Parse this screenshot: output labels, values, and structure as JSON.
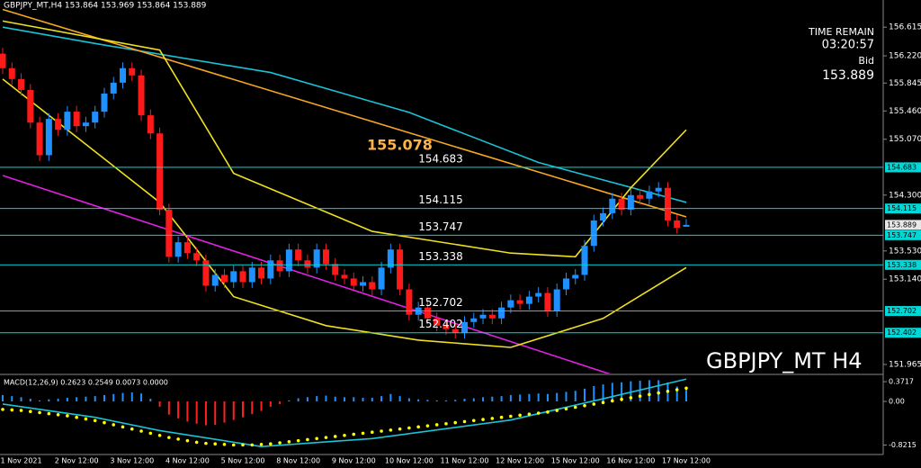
{
  "chart_data": {
    "type": "candlestick",
    "header": "GBPJPY_MT,H4 153.864 153.969 153.864 153.889",
    "categories": [
      null,
      null,
      "1 Nov 2021",
      null,
      null,
      null,
      null,
      null,
      "2 Nov 12:00",
      null,
      null,
      null,
      null,
      null,
      "3 Nov 12:00",
      null,
      null,
      null,
      null,
      null,
      "4 Nov 12:00",
      null,
      null,
      null,
      null,
      null,
      "5 Nov 12:00",
      null,
      null,
      null,
      null,
      null,
      "8 Nov 12:00",
      null,
      null,
      null,
      null,
      null,
      "9 Nov 12:00",
      null,
      null,
      null,
      null,
      null,
      "10 Nov 12:00",
      null,
      null,
      null,
      null,
      null,
      "11 Nov 12:00",
      null,
      null,
      null,
      null,
      null,
      "12 Nov 12:00",
      null,
      null,
      null,
      null,
      null,
      "15 Nov 12:00",
      null,
      null,
      null,
      null,
      null,
      "16 Nov 12:00",
      null,
      null,
      null,
      null,
      null,
      "17 Nov 12:00"
    ],
    "open": [
      156.25,
      156.05,
      155.9,
      155.75,
      155.3,
      154.85,
      155.35,
      155.2,
      155.45,
      155.25,
      155.3,
      155.45,
      155.7,
      155.85,
      156.05,
      155.95,
      155.4,
      155.15,
      154.1,
      153.45,
      153.65,
      153.5,
      153.4,
      153.05,
      153.2,
      153.1,
      153.25,
      153.1,
      153.3,
      153.15,
      153.4,
      153.25,
      153.55,
      153.4,
      153.3,
      153.55,
      153.35,
      153.2,
      153.15,
      153.05,
      153.1,
      153.0,
      153.3,
      153.55,
      153.0,
      152.65,
      152.75,
      152.6,
      152.5,
      152.45,
      152.4,
      152.55,
      152.6,
      152.65,
      152.6,
      152.75,
      152.85,
      152.8,
      152.9,
      152.95,
      152.7,
      153.0,
      153.15,
      153.2,
      153.6,
      153.95,
      154.05,
      154.25,
      154.1,
      154.3,
      154.25,
      154.35,
      154.4,
      153.95,
      153.864
    ],
    "high": [
      156.33,
      156.13,
      155.98,
      155.83,
      155.38,
      155.43,
      155.43,
      155.53,
      155.53,
      155.38,
      155.53,
      155.78,
      155.93,
      156.13,
      156.13,
      156.03,
      155.48,
      155.23,
      154.18,
      153.73,
      153.73,
      153.58,
      153.48,
      153.28,
      153.28,
      153.33,
      153.33,
      153.38,
      153.38,
      153.48,
      153.48,
      153.63,
      153.63,
      153.48,
      153.63,
      153.63,
      153.43,
      153.28,
      153.23,
      153.18,
      153.18,
      153.38,
      153.63,
      153.63,
      153.08,
      152.83,
      152.83,
      152.68,
      152.58,
      152.53,
      152.63,
      152.68,
      152.73,
      152.73,
      152.83,
      152.93,
      152.93,
      152.98,
      153.03,
      153.03,
      153.08,
      153.23,
      153.28,
      153.68,
      154.03,
      154.13,
      154.33,
      154.33,
      154.38,
      154.38,
      154.43,
      154.48,
      154.48,
      154.03,
      153.969
    ],
    "low": [
      155.97,
      155.82,
      155.67,
      155.22,
      154.77,
      154.77,
      155.12,
      155.12,
      155.17,
      155.17,
      155.22,
      155.37,
      155.62,
      155.77,
      155.87,
      155.32,
      155.07,
      154.02,
      153.37,
      153.37,
      153.42,
      153.32,
      152.97,
      152.97,
      153.02,
      153.02,
      153.02,
      153.02,
      153.07,
      153.07,
      153.17,
      153.17,
      153.32,
      153.22,
      153.22,
      153.27,
      153.12,
      153.07,
      152.97,
      152.97,
      152.92,
      152.92,
      153.22,
      152.92,
      152.57,
      152.57,
      152.52,
      152.42,
      152.37,
      152.32,
      152.32,
      152.47,
      152.52,
      152.52,
      152.52,
      152.67,
      152.72,
      152.72,
      152.82,
      152.62,
      152.62,
      152.92,
      153.07,
      153.12,
      153.52,
      153.87,
      153.97,
      154.02,
      154.02,
      154.17,
      154.17,
      154.27,
      153.87,
      153.77,
      153.864
    ],
    "close": [
      156.05,
      155.9,
      155.75,
      155.3,
      154.85,
      155.35,
      155.2,
      155.45,
      155.25,
      155.3,
      155.45,
      155.7,
      155.85,
      156.05,
      155.95,
      155.4,
      155.15,
      154.1,
      153.45,
      153.65,
      153.5,
      153.4,
      153.05,
      153.2,
      153.1,
      153.25,
      153.1,
      153.3,
      153.15,
      153.4,
      153.25,
      153.55,
      153.4,
      153.3,
      153.55,
      153.35,
      153.2,
      153.15,
      153.05,
      153.1,
      153.0,
      153.3,
      153.55,
      153.0,
      152.65,
      152.75,
      152.6,
      152.5,
      152.45,
      152.4,
      152.55,
      152.6,
      152.65,
      152.6,
      152.75,
      152.85,
      152.8,
      152.9,
      152.95,
      152.7,
      153.0,
      153.15,
      153.2,
      153.6,
      153.95,
      154.05,
      154.25,
      154.1,
      154.3,
      154.25,
      154.35,
      154.4,
      153.95,
      153.85,
      153.889
    ],
    "up_color": "#1e90ff",
    "down_color": "#ff1a1a",
    "ylim": [
      151.84,
      156.99
    ],
    "yticks": [
      156.615,
      {
        "value": 156.22,
        "label": "156.220"
      },
      155.845,
      {
        "value": 155.46,
        "label": "155.460"
      },
      {
        "value": 155.07,
        "label": "155.070"
      },
      {
        "value": 154.3,
        "label": "154.300"
      },
      {
        "value": 153.53,
        "label": "153.530"
      },
      {
        "value": 153.14,
        "label": "153.140"
      },
      151.965
    ],
    "levels": [
      154.683,
      154.115,
      153.747,
      153.338,
      152.702,
      152.402
    ],
    "level_color": "#00d8d8",
    "high_label": 155.078,
    "high_label_color": "#ffb347",
    "timer": {
      "title": "TIME REMAIN",
      "value": "03:20:57"
    },
    "bid": {
      "label": "Bid",
      "value": 153.889
    },
    "symbol_label": "GBPJPY_MT H4",
    "overlays": [
      {
        "color": "#19c3d6",
        "x": [
          0,
          10,
          29,
          44,
          58,
          74
        ],
        "values": [
          156.615,
          156.39,
          155.99,
          155.44,
          154.75,
          154.2
        ]
      },
      {
        "color": "#f5a623",
        "x": [
          0,
          74
        ],
        "values": [
          156.86,
          154.0
        ]
      },
      {
        "color": "#e020e0",
        "x": [
          0,
          67
        ],
        "values": [
          154.57,
          151.78
        ]
      },
      {
        "color": "#f0e020",
        "x": [
          0,
          17,
          25,
          40,
          55,
          62,
          68,
          74
        ],
        "values": [
          156.7,
          156.3,
          154.6,
          153.8,
          153.5,
          153.45,
          154.4,
          155.2
        ]
      },
      {
        "color": "#f0e020",
        "x": [
          0,
          17,
          25,
          35,
          45,
          55,
          65,
          74
        ],
        "values": [
          155.9,
          154.2,
          152.9,
          152.5,
          152.3,
          152.2,
          152.6,
          153.3
        ]
      }
    ],
    "macd": {
      "label": "MACD(12,26,9) 0.2623 0.2549 0.0073 0.0000",
      "ylim": [
        -1.0,
        0.475
      ],
      "yticks": [
        0.3717,
        {
          "value": 0,
          "label": "0.00"
        },
        -0.8215
      ],
      "hist_up_color": "#1e90ff",
      "hist_down_color": "#ff2020",
      "histogram": [
        0.12,
        0.1,
        0.08,
        0.05,
        0.02,
        0.04,
        0.05,
        0.07,
        0.08,
        0.09,
        0.1,
        0.12,
        0.14,
        0.16,
        0.17,
        0.15,
        0.05,
        -0.1,
        -0.25,
        -0.32,
        -0.38,
        -0.42,
        -0.45,
        -0.44,
        -0.4,
        -0.35,
        -0.3,
        -0.24,
        -0.18,
        -0.1,
        -0.05,
        0.02,
        0.06,
        0.08,
        0.1,
        0.11,
        0.09,
        0.08,
        0.08,
        0.07,
        0.07,
        0.1,
        0.14,
        0.1,
        0.06,
        0.04,
        0.03,
        0.02,
        0.02,
        0.03,
        0.05,
        0.06,
        0.08,
        0.09,
        0.1,
        0.12,
        0.13,
        0.14,
        0.15,
        0.14,
        0.16,
        0.18,
        0.2,
        0.24,
        0.29,
        0.32,
        0.35,
        0.36,
        0.38,
        0.39,
        0.4,
        0.4,
        0.36,
        0.28,
        0.26
      ],
      "signal_color": "#ffff00",
      "signal": [
        -0.15,
        -0.16,
        -0.17,
        -0.19,
        -0.21,
        -0.23,
        -0.25,
        -0.27,
        -0.3,
        -0.33,
        -0.36,
        -0.4,
        -0.44,
        -0.48,
        -0.52,
        -0.56,
        -0.6,
        -0.64,
        -0.68,
        -0.71,
        -0.74,
        -0.77,
        -0.79,
        -0.8,
        -0.81,
        -0.82,
        -0.82,
        -0.82,
        -0.81,
        -0.8,
        -0.78,
        -0.76,
        -0.74,
        -0.72,
        -0.7,
        -0.68,
        -0.66,
        -0.64,
        -0.62,
        -0.6,
        -0.58,
        -0.56,
        -0.54,
        -0.52,
        -0.5,
        -0.48,
        -0.46,
        -0.44,
        -0.42,
        -0.4,
        -0.38,
        -0.36,
        -0.34,
        -0.32,
        -0.3,
        -0.28,
        -0.26,
        -0.24,
        -0.22,
        -0.2,
        -0.17,
        -0.14,
        -0.11,
        -0.08,
        -0.05,
        -0.02,
        0.01,
        0.04,
        0.07,
        0.1,
        0.13,
        0.16,
        0.19,
        0.22,
        0.25
      ],
      "line": {
        "color": "#19c3d6",
        "x": [
          0,
          10,
          17,
          28,
          40,
          55,
          65,
          74
        ],
        "values": [
          -0.05,
          -0.3,
          -0.55,
          -0.85,
          -0.7,
          -0.35,
          0.05,
          0.42
        ]
      }
    }
  }
}
